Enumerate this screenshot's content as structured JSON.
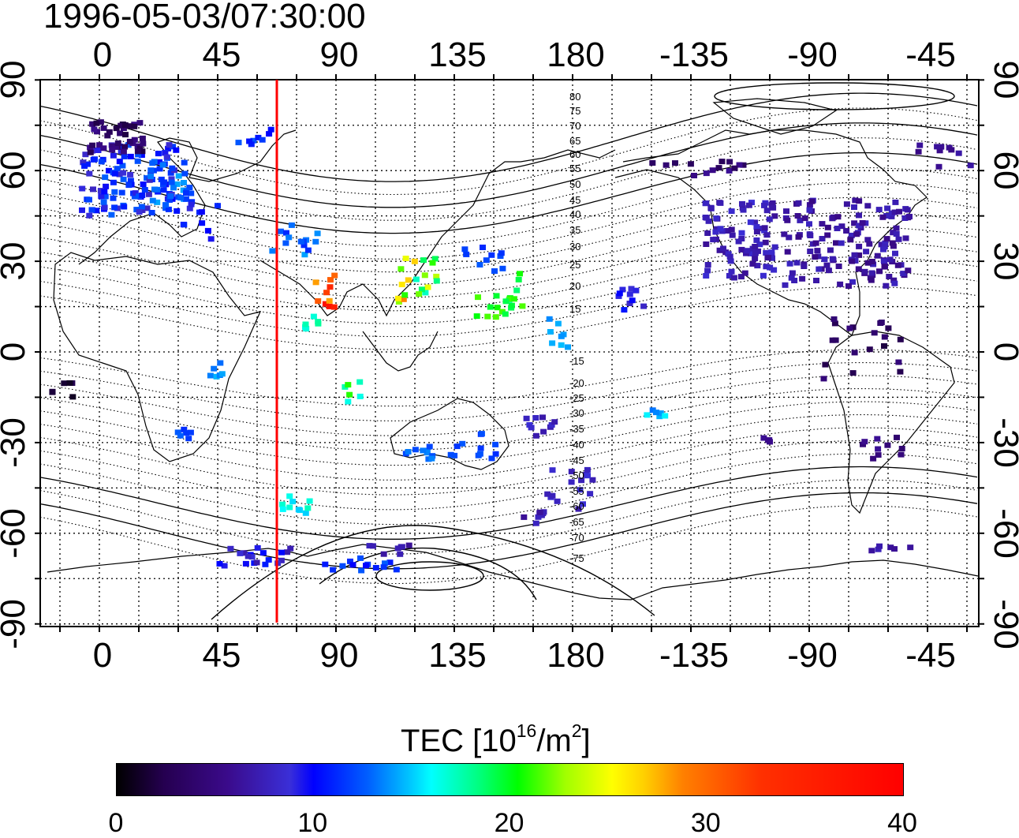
{
  "title": "1996-05-03/07:30:00",
  "axes": {
    "lon_labels": [
      "0",
      "45",
      "90",
      "135",
      "180",
      "-135",
      "-90",
      "-45"
    ],
    "lat_labels": [
      "90",
      "60",
      "30",
      "0",
      "-30",
      "-60",
      "-90"
    ]
  },
  "contour_labels": {
    "north": [
      "80",
      "75",
      "70",
      "65",
      "60",
      "55",
      "50",
      "45",
      "40",
      "35",
      "30",
      "25",
      "20",
      "15"
    ],
    "south": [
      "-15",
      "-20",
      "-25",
      "-30",
      "-35",
      "-40",
      "-45",
      "-50",
      "-55",
      "-60",
      "-65",
      "-70",
      "-75"
    ]
  },
  "markers": {
    "red_meridian_lon": 67.5
  },
  "colors": {
    "red_line": "#ff0000",
    "grid": "#000000"
  },
  "colorbar": {
    "title_main": "TEC  [10",
    "title_sup1": "16",
    "title_mid": "/m",
    "title_sup2": "2",
    "title_end": "]",
    "tick_labels": [
      "0",
      "10",
      "20",
      "30",
      "40"
    ],
    "range": [
      0,
      40
    ]
  }
}
